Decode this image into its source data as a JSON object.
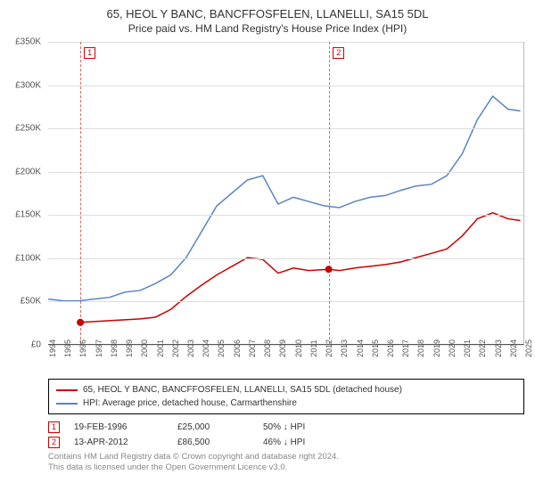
{
  "title": {
    "line1": "65, HEOL Y BANC, BANCFFOSFELEN, LLANELLI, SA15 5DL",
    "line2": "Price paid vs. HM Land Registry's House Price Index (HPI)"
  },
  "chart": {
    "type": "line",
    "background_color": "#ffffff",
    "grid_color": "#dddddd",
    "axis_color": "#555555",
    "y": {
      "min": 0,
      "max": 350000,
      "step": 50000,
      "ticks": [
        "£0",
        "£50K",
        "£100K",
        "£150K",
        "£200K",
        "£250K",
        "£300K",
        "£350K"
      ],
      "label_fontsize": 10
    },
    "x": {
      "min": 1994,
      "max": 2025,
      "step": 1,
      "ticks": [
        1994,
        1995,
        1996,
        1997,
        1998,
        1999,
        2000,
        2001,
        2002,
        2003,
        2004,
        2005,
        2006,
        2007,
        2008,
        2009,
        2010,
        2011,
        2012,
        2013,
        2014,
        2015,
        2016,
        2017,
        2018,
        2019,
        2020,
        2021,
        2022,
        2023,
        2024,
        2025
      ],
      "label_fontsize": 9
    },
    "markers": [
      {
        "id": "1",
        "year": 1996.1,
        "line_color": "#cc0000",
        "dash": true
      },
      {
        "id": "2",
        "year": 2012.3,
        "line_color": "#cc0000",
        "dash": true
      }
    ],
    "series": [
      {
        "name": "property",
        "color": "#cc0000",
        "line_width": 1.5,
        "points": [
          [
            1996.1,
            25000
          ],
          [
            1997,
            26000
          ],
          [
            1998,
            27000
          ],
          [
            1999,
            28000
          ],
          [
            2000,
            29000
          ],
          [
            2001,
            31000
          ],
          [
            2002,
            40000
          ],
          [
            2003,
            55000
          ],
          [
            2004,
            68000
          ],
          [
            2005,
            80000
          ],
          [
            2006,
            90000
          ],
          [
            2007,
            100000
          ],
          [
            2008,
            98000
          ],
          [
            2009,
            82000
          ],
          [
            2010,
            88000
          ],
          [
            2011,
            85000
          ],
          [
            2012.3,
            86500
          ],
          [
            2013,
            85000
          ],
          [
            2014,
            88000
          ],
          [
            2015,
            90000
          ],
          [
            2016,
            92000
          ],
          [
            2017,
            95000
          ],
          [
            2018,
            100000
          ],
          [
            2019,
            105000
          ],
          [
            2020,
            110000
          ],
          [
            2021,
            125000
          ],
          [
            2022,
            145000
          ],
          [
            2023,
            152000
          ],
          [
            2024,
            145000
          ],
          [
            2024.8,
            143000
          ]
        ],
        "dots": [
          [
            1996.1,
            25000
          ],
          [
            2012.3,
            86500
          ]
        ],
        "dot_radius": 4
      },
      {
        "name": "hpi",
        "color": "#5b84c4",
        "line_width": 1.5,
        "points": [
          [
            1994,
            52000
          ],
          [
            1995,
            50000
          ],
          [
            1996,
            50000
          ],
          [
            1997,
            52000
          ],
          [
            1998,
            54000
          ],
          [
            1999,
            60000
          ],
          [
            2000,
            62000
          ],
          [
            2001,
            70000
          ],
          [
            2002,
            80000
          ],
          [
            2003,
            100000
          ],
          [
            2004,
            130000
          ],
          [
            2005,
            160000
          ],
          [
            2006,
            175000
          ],
          [
            2007,
            190000
          ],
          [
            2008,
            195000
          ],
          [
            2009,
            162000
          ],
          [
            2010,
            170000
          ],
          [
            2011,
            165000
          ],
          [
            2012,
            160000
          ],
          [
            2013,
            158000
          ],
          [
            2014,
            165000
          ],
          [
            2015,
            170000
          ],
          [
            2016,
            172000
          ],
          [
            2017,
            178000
          ],
          [
            2018,
            183000
          ],
          [
            2019,
            185000
          ],
          [
            2020,
            195000
          ],
          [
            2021,
            220000
          ],
          [
            2022,
            260000
          ],
          [
            2023,
            287000
          ],
          [
            2024,
            272000
          ],
          [
            2024.8,
            270000
          ]
        ]
      }
    ]
  },
  "legend": {
    "items": [
      {
        "color": "#cc0000",
        "label": "65, HEOL Y BANC, BANCFFOSFELEN, LLANELLI, SA15 5DL (detached house)"
      },
      {
        "color": "#5b84c4",
        "label": "HPI: Average price, detached house, Carmarthenshire"
      }
    ]
  },
  "records": [
    {
      "id": "1",
      "date": "19-FEB-1996",
      "price": "£25,000",
      "pct": "50% ↓ HPI"
    },
    {
      "id": "2",
      "date": "13-APR-2012",
      "price": "£86,500",
      "pct": "46% ↓ HPI"
    }
  ],
  "footer": {
    "line1": "Contains HM Land Registry data © Crown copyright and database right 2024.",
    "line2": "This data is licensed under the Open Government Licence v3.0."
  }
}
